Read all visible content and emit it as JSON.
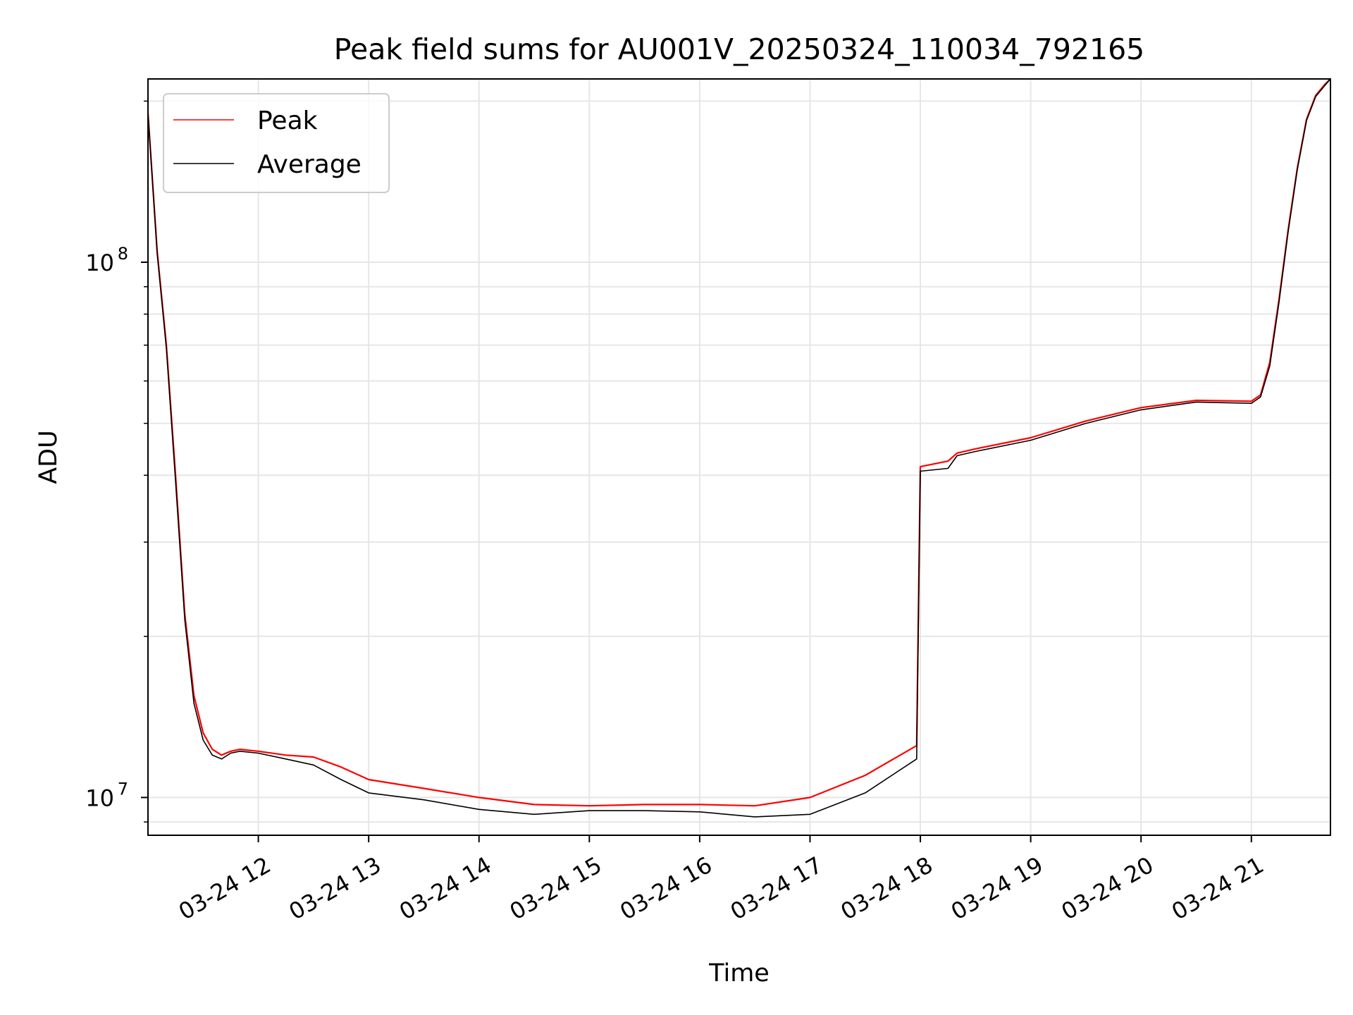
{
  "chart_data": {
    "type": "line",
    "title": "Peak field sums for AU001V_20250324_110034_792165",
    "xlabel": "Time",
    "ylabel": "ADU",
    "yscale": "log",
    "grid": true,
    "grid_minor": true,
    "legend_placement": "top-left",
    "xlim": [
      "2025-03-24 11:00",
      "2025-03-24 21:43"
    ],
    "ylim": [
      8500000,
      220000000
    ],
    "x_ticks": [
      {
        "x": "2025-03-24 12:00",
        "label": "03-24 12"
      },
      {
        "x": "2025-03-24 13:00",
        "label": "03-24 13"
      },
      {
        "x": "2025-03-24 14:00",
        "label": "03-24 14"
      },
      {
        "x": "2025-03-24 15:00",
        "label": "03-24 15"
      },
      {
        "x": "2025-03-24 16:00",
        "label": "03-24 16"
      },
      {
        "x": "2025-03-24 17:00",
        "label": "03-24 17"
      },
      {
        "x": "2025-03-24 18:00",
        "label": "03-24 18"
      },
      {
        "x": "2025-03-24 19:00",
        "label": "03-24 19"
      },
      {
        "x": "2025-03-24 20:00",
        "label": "03-24 20"
      },
      {
        "x": "2025-03-24 21:00",
        "label": "03-24 21"
      }
    ],
    "y_ticks": [
      {
        "value": 10000000,
        "base": "10",
        "exp": "7"
      },
      {
        "value": 100000000,
        "base": "10",
        "exp": "8"
      }
    ],
    "colors": {
      "peak": "#ff0000",
      "average": "#000000",
      "grid": "#e6e6e6"
    },
    "series": [
      {
        "name": "Peak",
        "color": "#ff0000",
        "x": [
          "2025-03-24 11:00",
          "2025-03-24 11:05",
          "2025-03-24 11:10",
          "2025-03-24 11:15",
          "2025-03-24 11:20",
          "2025-03-24 11:25",
          "2025-03-24 11:30",
          "2025-03-24 11:35",
          "2025-03-24 11:40",
          "2025-03-24 11:45",
          "2025-03-24 11:50",
          "2025-03-24 12:00",
          "2025-03-24 12:15",
          "2025-03-24 12:30",
          "2025-03-24 12:45",
          "2025-03-24 13:00",
          "2025-03-24 13:30",
          "2025-03-24 14:00",
          "2025-03-24 14:30",
          "2025-03-24 15:00",
          "2025-03-24 15:30",
          "2025-03-24 16:00",
          "2025-03-24 16:30",
          "2025-03-24 17:00",
          "2025-03-24 17:30",
          "2025-03-24 17:58",
          "2025-03-24 18:00",
          "2025-03-24 18:15",
          "2025-03-24 18:20",
          "2025-03-24 18:30",
          "2025-03-24 19:00",
          "2025-03-24 19:30",
          "2025-03-24 20:00",
          "2025-03-24 20:30",
          "2025-03-24 21:00",
          "2025-03-24 21:05",
          "2025-03-24 21:10",
          "2025-03-24 21:15",
          "2025-03-24 21:20",
          "2025-03-24 21:25",
          "2025-03-24 21:30",
          "2025-03-24 21:35",
          "2025-03-24 21:40",
          "2025-03-24 21:43"
        ],
        "values": [
          190000000,
          105000000,
          70000000,
          40000000,
          22000000,
          15500000,
          13200000,
          12300000,
          12000000,
          12200000,
          12300000,
          12200000,
          12000000,
          11900000,
          11400000,
          10800000,
          10400000,
          10000000,
          9700000,
          9650000,
          9700000,
          9700000,
          9650000,
          10000000,
          11000000,
          12500000,
          41500000,
          42500000,
          44000000,
          44800000,
          47000000,
          50500000,
          53500000,
          55200000,
          55000000,
          56500000,
          65000000,
          85000000,
          115000000,
          150000000,
          185000000,
          205000000,
          215000000,
          220000000
        ]
      },
      {
        "name": "Average",
        "color": "#000000",
        "x": [
          "2025-03-24 11:00",
          "2025-03-24 11:05",
          "2025-03-24 11:10",
          "2025-03-24 11:15",
          "2025-03-24 11:20",
          "2025-03-24 11:25",
          "2025-03-24 11:30",
          "2025-03-24 11:35",
          "2025-03-24 11:40",
          "2025-03-24 11:45",
          "2025-03-24 11:50",
          "2025-03-24 12:00",
          "2025-03-24 12:15",
          "2025-03-24 12:30",
          "2025-03-24 12:45",
          "2025-03-24 13:00",
          "2025-03-24 13:30",
          "2025-03-24 14:00",
          "2025-03-24 14:30",
          "2025-03-24 15:00",
          "2025-03-24 15:30",
          "2025-03-24 16:00",
          "2025-03-24 16:30",
          "2025-03-24 17:00",
          "2025-03-24 17:30",
          "2025-03-24 17:58",
          "2025-03-24 18:00",
          "2025-03-24 18:15",
          "2025-03-24 18:20",
          "2025-03-24 18:30",
          "2025-03-24 19:00",
          "2025-03-24 19:30",
          "2025-03-24 20:00",
          "2025-03-24 20:30",
          "2025-03-24 21:00",
          "2025-03-24 21:05",
          "2025-03-24 21:10",
          "2025-03-24 21:15",
          "2025-03-24 21:20",
          "2025-03-24 21:25",
          "2025-03-24 21:30",
          "2025-03-24 21:35",
          "2025-03-24 21:40",
          "2025-03-24 21:43"
        ],
        "values": [
          190000000,
          104000000,
          69000000,
          39000000,
          21500000,
          15000000,
          12800000,
          12000000,
          11800000,
          12100000,
          12200000,
          12100000,
          11800000,
          11500000,
          10800000,
          10200000,
          9900000,
          9500000,
          9300000,
          9450000,
          9450000,
          9400000,
          9200000,
          9300000,
          10200000,
          11800000,
          40700000,
          41200000,
          43500000,
          44300000,
          46500000,
          50000000,
          53000000,
          54800000,
          54500000,
          56000000,
          64000000,
          84000000,
          114000000,
          149000000,
          184000000,
          204000000,
          214000000,
          220000000
        ]
      }
    ]
  }
}
